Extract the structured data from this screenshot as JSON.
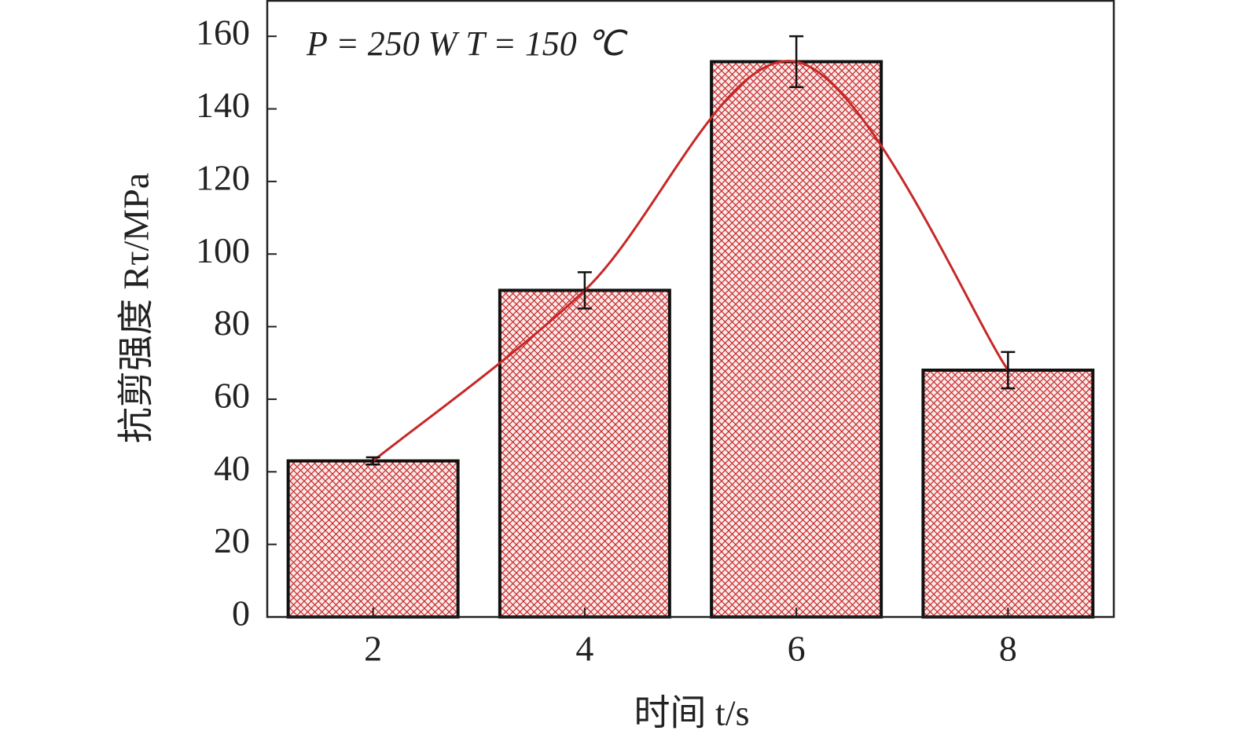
{
  "chart_data": {
    "type": "bar",
    "annotation": "P = 250 W  T = 150 ℃",
    "x_label": "时间 t/s",
    "y_label": "抗剪强度 Rτ/MPa",
    "categories": [
      "2",
      "4",
      "6",
      "8"
    ],
    "values": [
      43,
      90,
      153,
      68
    ],
    "errors": [
      1,
      5,
      7,
      5
    ],
    "color": "#c62828",
    "trend_line": true,
    "ylim": [
      0,
      170
    ],
    "yticks": [
      0,
      20,
      40,
      60,
      80,
      100,
      120,
      140,
      160
    ]
  }
}
